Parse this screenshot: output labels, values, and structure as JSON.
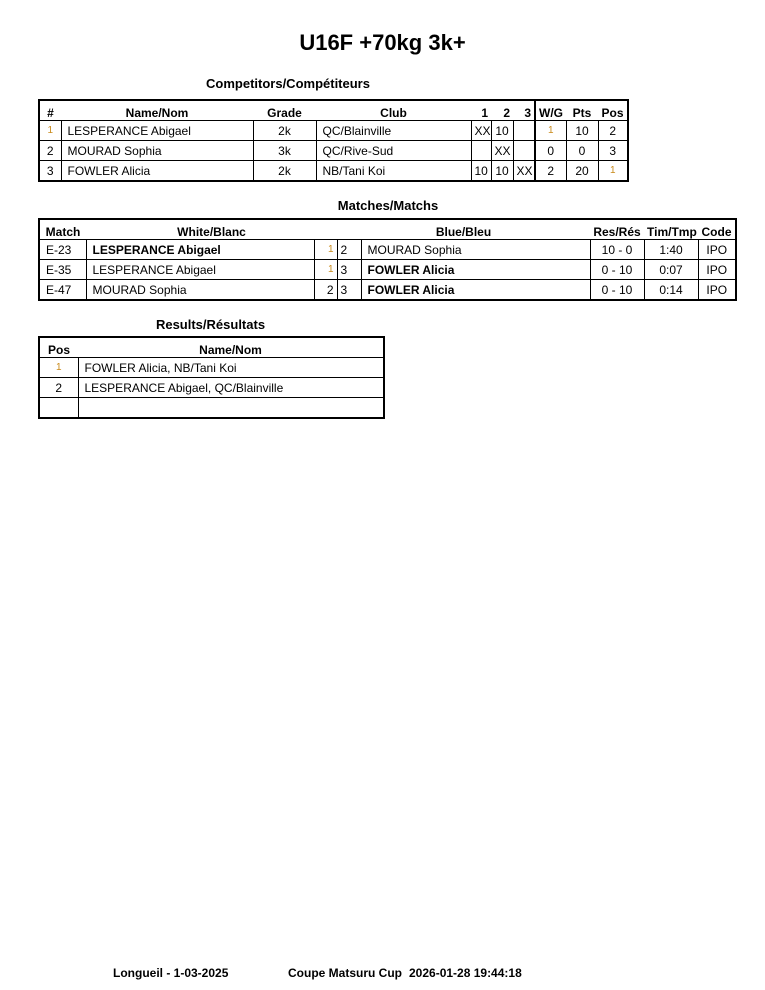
{
  "title": "U16F +70kg 3k+",
  "competitors": {
    "heading": "Competitors/Compétiteurs",
    "headers": [
      "#",
      "Name/Nom",
      "Grade",
      "Club",
      "1",
      "2",
      "3",
      "W/G",
      "Pts",
      "Pos"
    ],
    "rows": [
      [
        "1",
        "LESPERANCE Abigael",
        "2k",
        "QC/Blainville",
        "XX",
        "10",
        "",
        "1",
        "10",
        "2"
      ],
      [
        "2",
        "MOURAD Sophia",
        "3k",
        "QC/Rive-Sud",
        "",
        "XX",
        "",
        "0",
        "0",
        "3"
      ],
      [
        "3",
        "FOWLER Alicia",
        "2k",
        "NB/Tani Koi",
        "10",
        "10",
        "XX",
        "2",
        "20",
        "1"
      ]
    ]
  },
  "matches": {
    "heading": "Matches/Matchs",
    "headers": [
      "Match",
      "White/Blanc",
      "Blue/Bleu",
      "Res/Rés",
      "Tim/Tmp",
      "Code"
    ],
    "rows": [
      [
        "E-23",
        "LESPERANCE Abigael",
        "1",
        "2",
        "MOURAD Sophia",
        "10 - 0",
        "1:40",
        "IPO"
      ],
      [
        "E-35",
        "LESPERANCE Abigael",
        "1",
        "3",
        "FOWLER Alicia",
        "0 - 10",
        "0:07",
        "IPO"
      ],
      [
        "E-47",
        "MOURAD Sophia",
        "2",
        "3",
        "FOWLER Alicia",
        "0 - 10",
        "0:14",
        "IPO"
      ]
    ],
    "winner": [
      "white",
      "blue",
      "blue"
    ]
  },
  "results": {
    "heading": "Results/Résultats",
    "headers": [
      "Pos",
      "Name/Nom"
    ],
    "rows": [
      [
        "1",
        "FOWLER Alicia, NB/Tani Koi"
      ],
      [
        "2",
        "LESPERANCE Abigael, QC/Blainville"
      ],
      [
        "",
        ""
      ]
    ]
  },
  "footer": {
    "location": "Longueil - 1-03-2025",
    "event": "Coupe Matsuru Cup",
    "printed": "2026-01-28 19:44:18"
  },
  "colors": {
    "first_place": "#c98a1a"
  }
}
